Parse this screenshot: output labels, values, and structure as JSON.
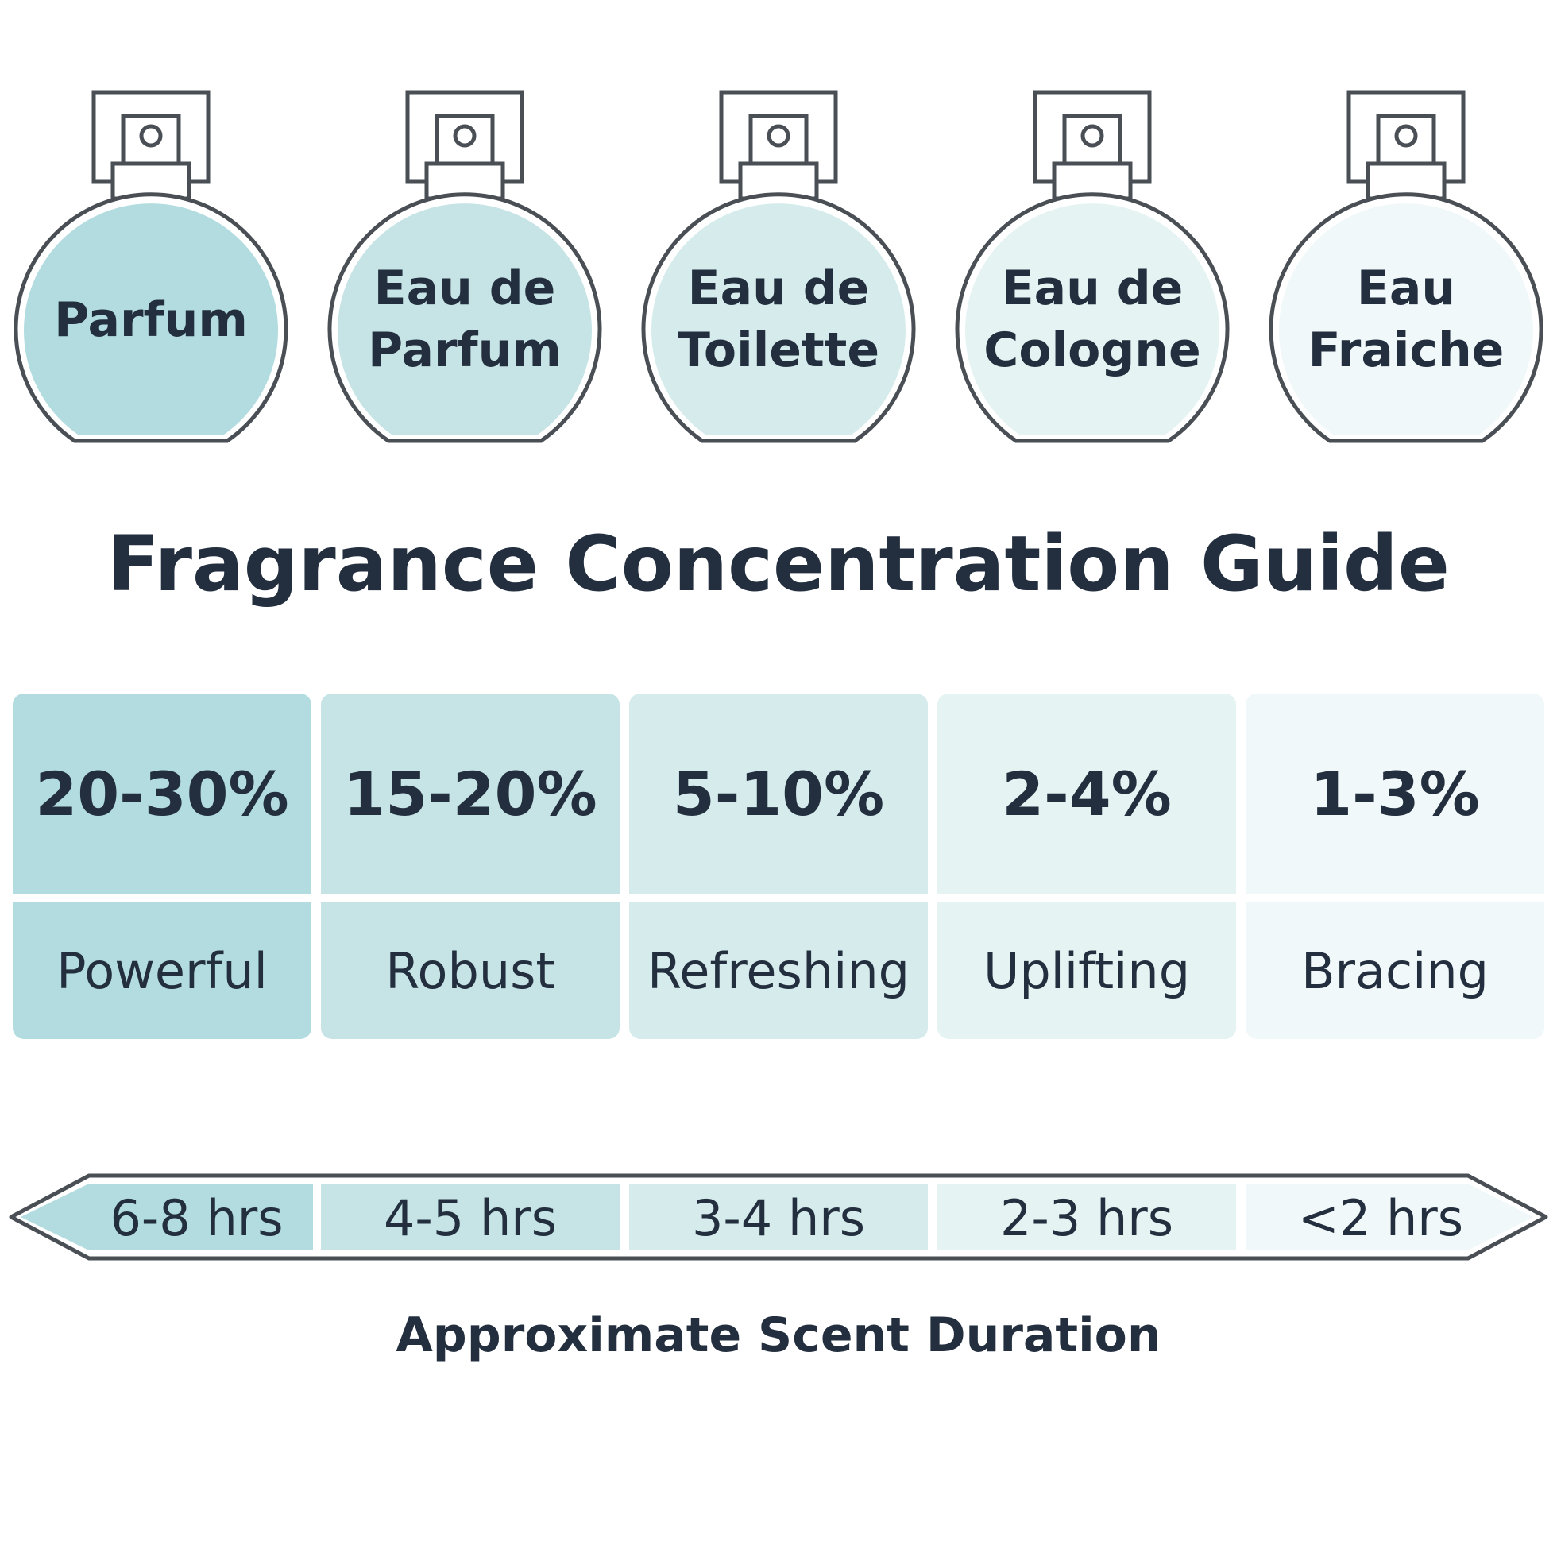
{
  "title": "Fragrance Concentration Guide",
  "axis_label": "Approximate Scent Duration",
  "colors": {
    "text": "#232f3e",
    "outline": "#4a4f55",
    "levels": [
      "#b2dcdf",
      "#c6e4e6",
      "#d6ecec",
      "#e5f3f3",
      "#f1f8fa"
    ]
  },
  "types": [
    {
      "name": "Parfum",
      "concentration": "20-30%",
      "character": "Powerful",
      "duration": "6-8 hrs"
    },
    {
      "name": "Eau de\nParfum",
      "concentration": "15-20%",
      "character": "Robust",
      "duration": "4-5 hrs"
    },
    {
      "name": "Eau de\nToilette",
      "concentration": "5-10%",
      "character": "Refreshing",
      "duration": "3-4 hrs"
    },
    {
      "name": "Eau de\nCologne",
      "concentration": "2-4%",
      "character": "Uplifting",
      "duration": "2-3 hrs"
    },
    {
      "name": "Eau\nFraiche",
      "concentration": "1-3%",
      "character": "Bracing",
      "duration": "<2 hrs"
    }
  ]
}
